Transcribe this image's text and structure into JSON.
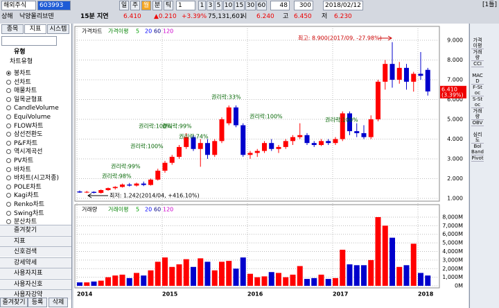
{
  "toolbar": {
    "market": "해외주식",
    "code": "603993",
    "periods": [
      "일",
      "주",
      "월",
      "분",
      "틱"
    ],
    "active_period_index": 2,
    "period_count": "1",
    "minutes": [
      "1",
      "3",
      "5",
      "10",
      "15",
      "30",
      "60"
    ],
    "count": "48",
    "total": "300",
    "date": "2018/02/12",
    "layout": "[1틀]"
  },
  "quote": {
    "exchange": "상해",
    "name": "낙양몰리브덴",
    "delay": "15분 지연",
    "price": "6.410",
    "change": "▲0.210",
    "change_pct": "+3.39%",
    "volume": "75,131,601",
    "open_label": "시",
    "open": "6.240",
    "high_label": "고",
    "high": "6.450",
    "low_label": "저",
    "low": "6.230"
  },
  "left_panel": {
    "tabs": [
      "종목",
      "지표",
      "시스템"
    ],
    "group": "유형",
    "subgroup": "차트유형",
    "chart_types": [
      "봉차트",
      "선차트",
      "매물차트",
      "일목균형표",
      "CandleVolume",
      "EquiVolume",
      "FLOW차트",
      "삼선전환도",
      "P&F차트",
      "역시계곡선",
      "PV차트",
      "바차트",
      "바차트(시고저종)",
      "POLE차트",
      "Kagi차트",
      "Renko차트",
      "Swing차트",
      "분산차트"
    ],
    "selected_index": 0,
    "sections": [
      "즐겨찾기",
      "지표",
      "신호검색",
      "강세약세",
      "사용자지표",
      "사용자신호",
      "사용자강약"
    ],
    "bottom_tabs": [
      "즐겨찾기",
      "등록",
      "삭제"
    ]
  },
  "right_toolbar": [
    "가격이평",
    "거래량",
    "CCI",
    "MACD",
    "F-Stoc",
    "S-Stoc",
    "거래량",
    "OBV",
    "심리도",
    "Bol Band",
    "Pivot"
  ],
  "chart_data": {
    "type": "candlestick",
    "categories": [
      "2014",
      null,
      null,
      null,
      null,
      null,
      null,
      null,
      null,
      null,
      null,
      null,
      "2015",
      null,
      null,
      null,
      null,
      null,
      null,
      null,
      null,
      null,
      null,
      null,
      "2016",
      null,
      null,
      null,
      null,
      null,
      null,
      null,
      null,
      null,
      null,
      null,
      "2017",
      null,
      null,
      null,
      null,
      null,
      null,
      null,
      null,
      null,
      null,
      null,
      "2018",
      null
    ],
    "open": [
      1.35,
      1.3,
      1.33,
      1.28,
      1.42,
      1.52,
      1.58,
      1.7,
      1.65,
      1.75,
      1.68,
      1.95,
      2.4,
      2.8,
      3.1,
      3.6,
      4.1,
      3.5,
      3.8,
      3.2,
      3.9,
      4.8,
      5.6,
      4.7,
      3.2,
      3.3,
      3.4,
      3.8,
      3.5,
      3.6,
      3.9,
      4.1,
      4.2,
      3.8,
      3.7,
      3.9,
      3.8,
      4.0,
      5.3,
      4.4,
      4.3,
      4.1,
      5.0,
      6.9,
      7.8,
      7.0,
      7.6,
      6.9,
      7.3,
      7.5
    ],
    "high": [
      1.4,
      1.38,
      1.36,
      1.45,
      1.55,
      1.62,
      1.75,
      1.78,
      1.8,
      1.85,
      2.0,
      2.5,
      2.9,
      3.2,
      3.7,
      4.3,
      4.2,
      4.0,
      4.0,
      4.0,
      5.1,
      5.7,
      5.7,
      4.8,
      3.4,
      3.5,
      3.9,
      4.0,
      3.7,
      4.0,
      4.2,
      4.8,
      4.3,
      3.9,
      4.0,
      4.0,
      4.1,
      5.4,
      5.4,
      4.8,
      4.7,
      5.2,
      7.0,
      8.0,
      8.9,
      7.9,
      7.8,
      7.4,
      8.4,
      7.6
    ],
    "low": [
      1.28,
      1.27,
      1.25,
      1.242,
      1.38,
      1.45,
      1.55,
      1.6,
      1.6,
      1.62,
      1.65,
      1.9,
      2.3,
      2.7,
      3.0,
      3.5,
      3.4,
      2.6,
      3.0,
      3.1,
      3.8,
      4.7,
      4.6,
      3.1,
      3.0,
      3.1,
      3.3,
      3.4,
      3.3,
      3.5,
      3.7,
      4.0,
      3.7,
      3.6,
      3.65,
      3.7,
      3.7,
      3.9,
      4.2,
      4.1,
      4.0,
      4.0,
      4.9,
      6.5,
      6.6,
      6.8,
      6.5,
      6.4,
      7.0,
      6.2
    ],
    "close": [
      1.3,
      1.33,
      1.28,
      1.42,
      1.52,
      1.58,
      1.7,
      1.65,
      1.75,
      1.68,
      1.95,
      2.4,
      2.8,
      3.1,
      3.6,
      4.1,
      3.5,
      3.8,
      3.2,
      3.9,
      5.0,
      5.6,
      4.7,
      3.2,
      3.3,
      3.4,
      3.8,
      3.5,
      3.6,
      3.9,
      4.1,
      4.2,
      3.8,
      3.7,
      3.9,
      3.8,
      4.0,
      5.3,
      4.4,
      4.3,
      4.1,
      5.0,
      6.9,
      7.8,
      7.0,
      7.6,
      6.9,
      7.3,
      7.2,
      6.41
    ],
    "up_color": "#ff0000",
    "down_color": "#0000cc",
    "ylim": [
      0.86,
      9.7
    ],
    "yticks": [
      {
        "value": 1,
        "label": "1.000"
      },
      {
        "value": 2,
        "label": "2.000"
      },
      {
        "value": 3,
        "label": "3.000"
      },
      {
        "value": 4,
        "label": "4.000"
      },
      {
        "value": 5,
        "label": "5.000"
      },
      {
        "value": 6,
        "label": "6.000"
      },
      {
        "value": 7,
        "label": "7.000"
      },
      {
        "value": 8,
        "label": "8.000"
      },
      {
        "value": 9,
        "label": "9.000"
      }
    ],
    "grid": true,
    "legend": {
      "price_label": "가격차트",
      "ma_label": "가격이평",
      "ma_periods": [
        5,
        20,
        60,
        120
      ],
      "ma_colors": [
        "#00a000",
        "#0000ff",
        "#000080",
        "#cc00cc"
      ]
    },
    "last_price_label": "6.410",
    "last_change_label": "(3.39%)",
    "annotations": [
      "최고: 8.900(2017/09, -27.98%)",
      "최저: 1.242(2014/04, +416.10%)",
      "권리락:98%",
      "권리락:99%",
      "권리락:100%",
      "권리락:100%",
      "권리락:99%",
      "권리락:74%",
      "권리락:33%",
      "권리락:100%",
      "권리락:100%"
    ],
    "volume": {
      "label": "거래량",
      "ma_label": "거래이평",
      "ma_periods": [
        5,
        20,
        60,
        120
      ],
      "values": [
        400,
        400,
        500,
        600,
        1000,
        1200,
        1300,
        900,
        1500,
        1200,
        1800,
        2800,
        3300,
        2200,
        2500,
        3100,
        2200,
        3200,
        2800,
        1800,
        2800,
        2900,
        2000,
        3300,
        1400,
        1000,
        1100,
        1600,
        1500,
        1000,
        1300,
        2300,
        800,
        900,
        1300,
        800,
        900,
        4200,
        2500,
        2400,
        2400,
        3000,
        8000,
        7000,
        5600,
        2200,
        2400,
        4900,
        1500,
        1200
      ],
      "ylim": [
        -240,
        9450
      ],
      "yticks": [
        {
          "value": 0,
          "label": "0M"
        },
        {
          "value": 1000,
          "label": "1,000M"
        },
        {
          "value": 2000,
          "label": "2,000M"
        },
        {
          "value": 3000,
          "label": "3,000M"
        },
        {
          "value": 4000,
          "label": "4,000M"
        },
        {
          "value": 5000,
          "label": "5,000M"
        },
        {
          "value": 6000,
          "label": "6,000M"
        },
        {
          "value": 7000,
          "label": "7,000M"
        },
        {
          "value": 8000,
          "label": "8,000M"
        }
      ]
    }
  }
}
